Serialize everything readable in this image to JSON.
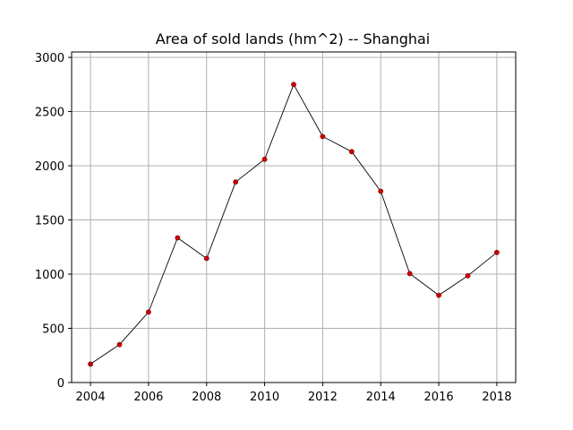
{
  "chart_data": {
    "type": "line",
    "title": "Area of sold lands (hm^2) -- Shanghai",
    "xlabel": "",
    "ylabel": "",
    "x": [
      2004,
      2005,
      2006,
      2007,
      2008,
      2009,
      2010,
      2011,
      2012,
      2013,
      2014,
      2015,
      2016,
      2017,
      2018
    ],
    "series": [
      {
        "name": "",
        "values": [
          170,
          350,
          650,
          1335,
          1145,
          1850,
          2060,
          2750,
          2270,
          2130,
          1765,
          1005,
          805,
          985,
          1200
        ]
      }
    ],
    "xlim": [
      2003.35,
      2018.65
    ],
    "ylim": [
      0,
      3050
    ],
    "xticks": [
      2004,
      2006,
      2008,
      2010,
      2012,
      2014,
      2016,
      2018
    ],
    "yticks": [
      0,
      500,
      1000,
      1500,
      2000,
      2500,
      3000
    ],
    "grid": true,
    "legend": "none",
    "colors": {
      "line": "#000000",
      "marker": "#cc0000",
      "grid": "#b0b0b0",
      "axes": "#000000",
      "background": "#ffffff"
    }
  }
}
